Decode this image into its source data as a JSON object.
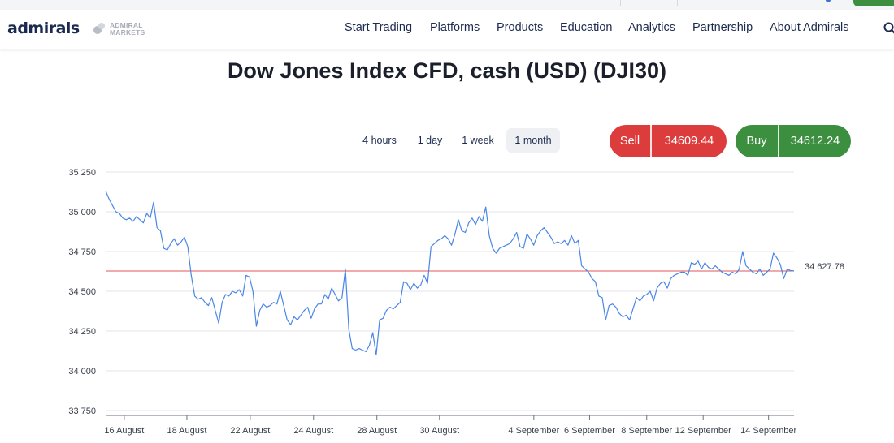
{
  "top": {
    "accent_green": "#3b8f3f"
  },
  "header": {
    "logo_text": "admirals",
    "partner_logo_text": "ADMIRAL\nMARKETS",
    "nav": [
      "Start Trading",
      "Platforms",
      "Products",
      "Education",
      "Analytics",
      "Partnership",
      "About Admirals"
    ],
    "search_icon": "search-icon"
  },
  "page": {
    "title": "Dow Jones Index CFD, cash (USD) (DJI30)"
  },
  "timeframes": {
    "items": [
      "4 hours",
      "1 day",
      "1 week",
      "1 month"
    ],
    "active": "1 month"
  },
  "quote": {
    "sell_label": "Sell",
    "sell_price": "34609.44",
    "sell_color": "#dc3c3c",
    "buy_label": "Buy",
    "buy_price": "34612.24",
    "buy_color": "#3b8f3f"
  },
  "chart_data": {
    "type": "line",
    "y_ticks": [
      "35 250",
      "35 000",
      "34 750",
      "34 500",
      "34 250",
      "34 000",
      "33 750"
    ],
    "y_tick_values": [
      35250,
      35000,
      34750,
      34500,
      34250,
      34000,
      33750
    ],
    "ylim": [
      33750,
      35250
    ],
    "x_labels": [
      "16 August",
      "18 August",
      "22 August",
      "24 August",
      "28 August",
      "30 August",
      "4 September",
      "6 September",
      "8 September",
      "12 September",
      "14 September"
    ],
    "reference_line": {
      "value": 34627.78,
      "label": "34 627.78",
      "color": "#e05555"
    },
    "line_color": "#4a86e8",
    "grid": true,
    "series": [
      {
        "values": [
          35130,
          35080,
          35040,
          35000,
          34990,
          34960,
          34950,
          34960,
          34940,
          34970,
          34950,
          34930,
          34990,
          34960,
          35060,
          34900,
          34880,
          34770,
          34760,
          34800,
          34830,
          34790,
          34810,
          34840,
          34780,
          34600,
          34470,
          34450,
          34460,
          34430,
          34410,
          34460,
          34380,
          34300,
          34430,
          34480,
          34470,
          34500,
          34490,
          34510,
          34470,
          34600,
          34590,
          34500,
          34280,
          34380,
          34420,
          34400,
          34410,
          34430,
          34420,
          34500,
          34410,
          34320,
          34290,
          34340,
          34320,
          34350,
          34380,
          34400,
          34330,
          34390,
          34420,
          34420,
          34480,
          34450,
          34520,
          34480,
          34440,
          34460,
          34640,
          34260,
          34140,
          34130,
          34140,
          34130,
          34120,
          34160,
          34240,
          34100,
          34320,
          34330,
          34380,
          34400,
          34390,
          34410,
          34430,
          34560,
          34550,
          34510,
          34550,
          34520,
          34540,
          34600,
          34550,
          34780,
          34800,
          34820,
          34830,
          34850,
          34830,
          34790,
          34860,
          34950,
          34880,
          34870,
          34930,
          34960,
          34920,
          34970,
          34940,
          35030,
          34850,
          34770,
          34740,
          34770,
          34780,
          34790,
          34800,
          34830,
          34870,
          34780,
          34770,
          34860,
          34830,
          34790,
          34850,
          34880,
          34900,
          34870,
          34840,
          34800,
          34810,
          34800,
          34820,
          34790,
          34850,
          34800,
          34820,
          34660,
          34640,
          34620,
          34580,
          34560,
          34470,
          34460,
          34320,
          34410,
          34420,
          34400,
          34360,
          34340,
          34350,
          34320,
          34390,
          34460,
          34440,
          34470,
          34480,
          34500,
          34440,
          34520,
          34550,
          34560,
          34520,
          34580,
          34600,
          34610,
          34620,
          34620,
          34600,
          34680,
          34670,
          34690,
          34640,
          34680,
          34650,
          34640,
          34660,
          34640,
          34620,
          34610,
          34600,
          34620,
          34610,
          34640,
          34750,
          34660,
          34640,
          34620,
          34610,
          34640,
          34600,
          34620,
          34640,
          34740,
          34710,
          34670,
          34580,
          34640,
          34630,
          34628
        ]
      }
    ]
  }
}
